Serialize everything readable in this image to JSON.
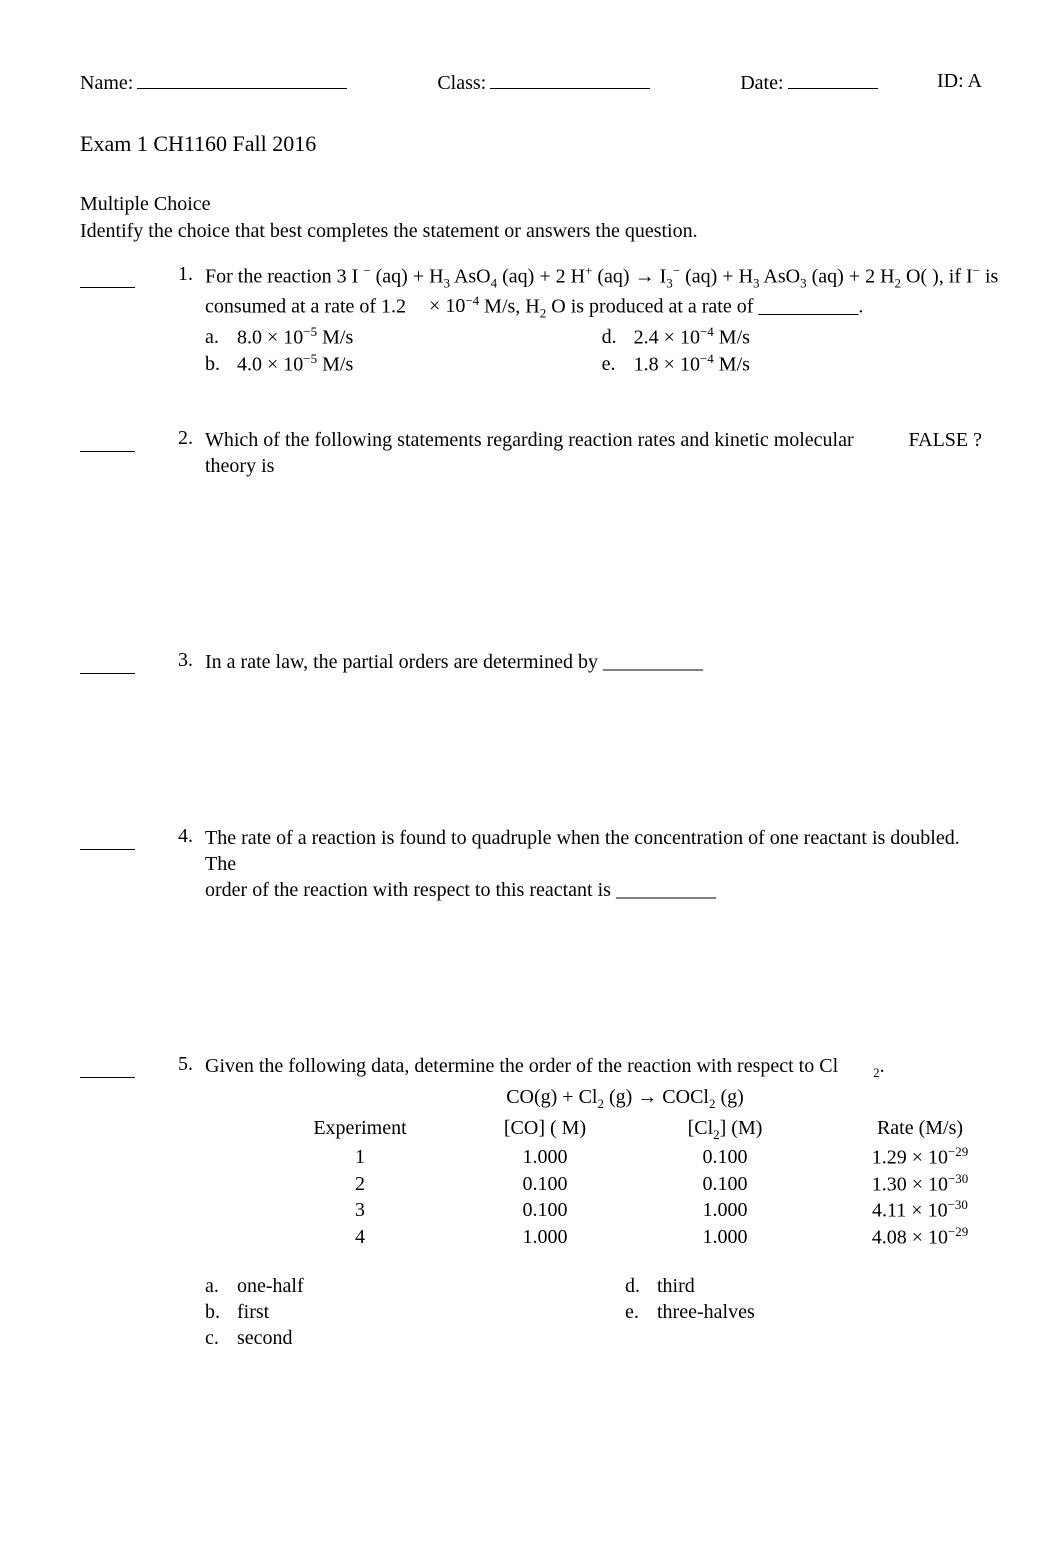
{
  "header": {
    "name_label": "Name:",
    "class_label": "Class:",
    "date_label": "Date:",
    "id_label": "ID: A"
  },
  "exam_title": "Exam 1 CH1160 Fall 2016",
  "section": {
    "label": "Multiple Choice",
    "instruction": "Identify the choice that best completes the statement or answers the question."
  },
  "q1": {
    "number": "1.",
    "stem_line1_a": "For the reaction 3 I",
    "stem_line1_b": "(aq) + H",
    "stem_line1_c": "AsO",
    "stem_line1_d": "(aq) + 2 H",
    "stem_line1_e": "(aq)  → I",
    "stem_line1_f": "(aq) + H",
    "stem_line1_g": "AsO",
    "stem_line1_h": "(aq) + 2 H",
    "stem_line1_i": "O(  ), if I",
    "stem_line1_j": " is",
    "stem_line2_a": "consumed at a rate of 1.2",
    "stem_line2_b": "× 10",
    "stem_line2_c": " M/s, H",
    "stem_line2_d": "O is produced at a rate of __________.",
    "a_letter": "a.",
    "a_val_a": "8.0 × 10",
    "a_val_b": " M/s",
    "a_exp": "−5",
    "b_letter": "b.",
    "b_val_a": "4.0 × 10",
    "b_val_b": " M/s",
    "b_exp": "−5",
    "d_letter": "d.",
    "d_val_a": "2.4 × 10",
    "d_val_b": " M/s",
    "d_exp": "−4",
    "e_letter": "e.",
    "e_val_a": "1.8 × 10",
    "e_val_b": " M/s",
    "e_exp": "−4",
    "line2_exp": "−4",
    "sup_minus": "−",
    "sup_plus": "+",
    "sub3": "3",
    "sub4": "4",
    "sub2": "2"
  },
  "q2": {
    "number": "2.",
    "stem": "Which of the following statements regarding reaction rates and kinetic molecular theory is",
    "false": "FALSE ?"
  },
  "q3": {
    "number": "3.",
    "stem": "In a rate law, the partial orders are determined by __________"
  },
  "q4": {
    "number": "4.",
    "stem_l1": "The rate of a reaction is found to quadruple when the concentration of one reactant is doubled. The",
    "stem_l2": "order of the reaction with respect to this reactant is __________"
  },
  "q5": {
    "number": "5.",
    "stem_a": "Given the following data, determine the order of the reaction with respect to Cl",
    "stem_b": ".",
    "sub2_after": "2",
    "eq_a": "CO(g) + Cl",
    "eq_b": "(g) → COCl",
    "eq_c": "(g)",
    "hExperiment": "Experiment",
    "hCO": "[CO] ( M)",
    "hCl2_a": "[Cl",
    "hCl2_b": "] (M)",
    "hRate": "Rate (M/s)",
    "rows": [
      {
        "exp": "1",
        "co": "1.000",
        "cl2": "0.100",
        "rate_a": "1.29 × 10",
        "rate_e": "−29"
      },
      {
        "exp": "2",
        "co": "0.100",
        "cl2": "0.100",
        "rate_a": "1.30 × 10",
        "rate_e": "−30"
      },
      {
        "exp": "3",
        "co": "0.100",
        "cl2": "1.000",
        "rate_a": "4.11 × 10",
        "rate_e": "−30"
      },
      {
        "exp": "4",
        "co": "1.000",
        "cl2": "1.000",
        "rate_a": "4.08 × 10",
        "rate_e": "−29"
      }
    ],
    "a_letter": "a.",
    "a_val": "one-half",
    "b_letter": "b.",
    "b_val": "first",
    "c_letter": "c.",
    "c_val": "second",
    "d_letter": "d.",
    "d_val": "third",
    "e_letter": "e.",
    "e_val": "three-halves"
  }
}
